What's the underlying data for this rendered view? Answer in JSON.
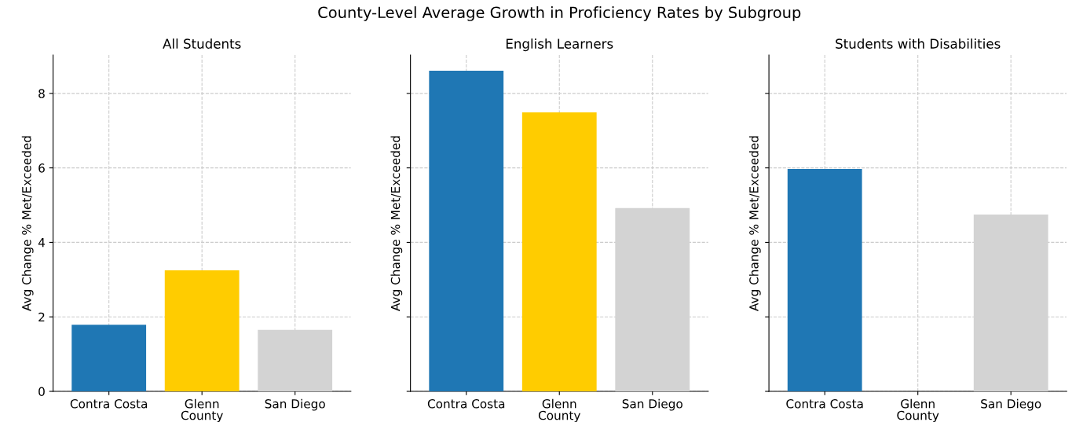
{
  "chart_data": [
    {
      "type": "bar",
      "title": "All Students",
      "categories": [
        "Contra Costa",
        "Glenn",
        "San Diego"
      ],
      "values": [
        1.79,
        3.25,
        1.65
      ],
      "colors": [
        "#1f77b4",
        "#ffcc00",
        "#d3d3d3"
      ],
      "xlabel": "County",
      "ylabel": "Avg Change % Met/Exceeded",
      "ylim": [
        0,
        9.03
      ],
      "yticks": [
        0,
        2,
        4,
        6,
        8
      ],
      "grid": true
    },
    {
      "type": "bar",
      "title": "English Learners",
      "subtitle": "County-Level Average Growth in Proficiency Rates by Subgroup",
      "categories": [
        "Contra Costa",
        "Glenn",
        "San Diego"
      ],
      "values": [
        8.61,
        7.49,
        4.92
      ],
      "colors": [
        "#1f77b4",
        "#ffcc00",
        "#d3d3d3"
      ],
      "xlabel": "County",
      "ylabel": "Avg Change % Met/Exceeded",
      "ylim": [
        0,
        9.03
      ],
      "yticks": [
        0,
        2,
        4,
        6,
        8
      ],
      "grid": true,
      "tick_labels": "x"
    },
    {
      "type": "bar",
      "title": "Students with Disabilities",
      "categories": [
        "Contra Costa",
        "Glenn",
        "San Diego"
      ],
      "values": [
        5.97,
        null,
        4.75
      ],
      "colors": [
        "#1f77b4",
        "#ffcc00",
        "#d3d3d3"
      ],
      "xlabel": "County",
      "ylabel": "Avg Change % Met/Exceeded",
      "ylim": [
        0,
        9.03
      ],
      "yticks": [
        0,
        2,
        4,
        6,
        8
      ],
      "grid": true,
      "tick_labels": "x"
    }
  ]
}
